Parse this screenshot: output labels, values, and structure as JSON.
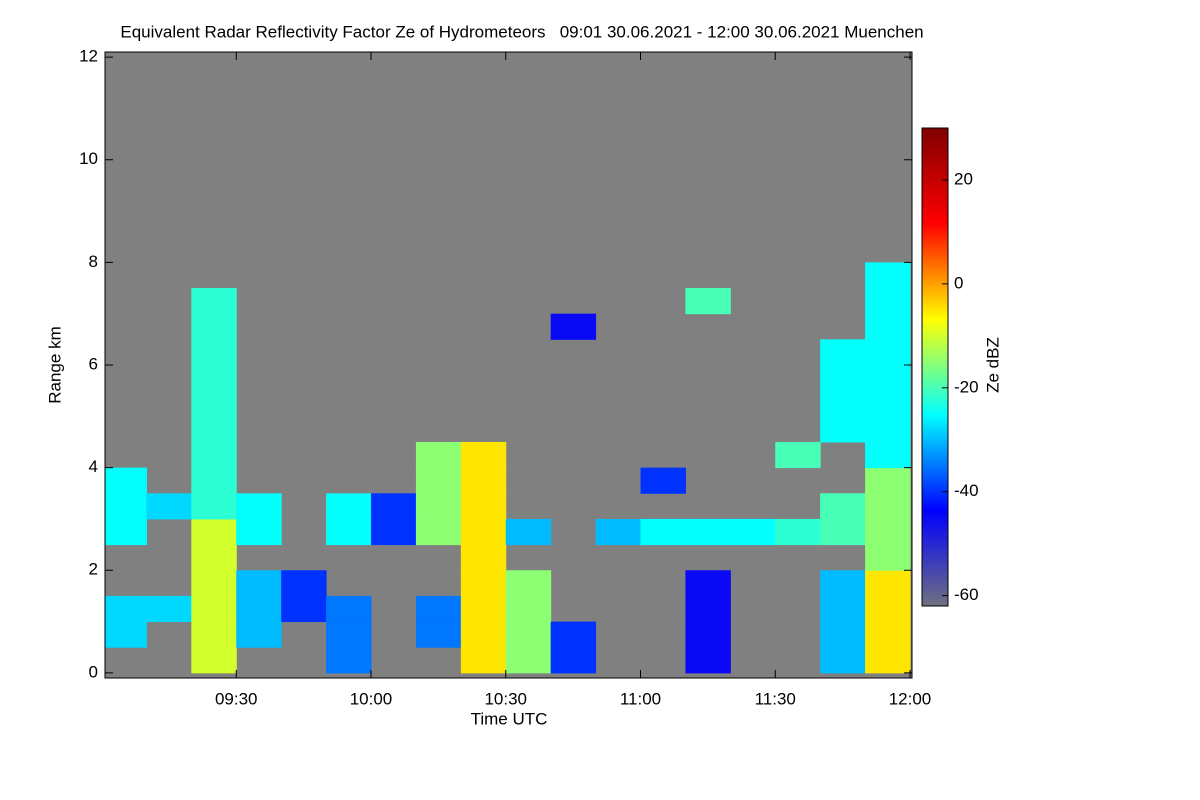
{
  "chart_data": {
    "type": "heatmap",
    "title": "Equivalent Radar Reflectivity Factor Ze of Hydrometeors   09:01 30.06.2021 - 12:00 30.06.2021 Muenchen",
    "x_label": "Time UTC",
    "y_label": "Range km",
    "colorbar_label": "Ze dBZ",
    "background": "#808080",
    "xlim": [
      "09:01",
      "12:00"
    ],
    "xticks": [
      "09:30",
      "10:00",
      "10:30",
      "11:00",
      "11:30",
      "12:00"
    ],
    "ylim": [
      -0.1,
      12.1
    ],
    "yticks": [
      0,
      2,
      4,
      6,
      8,
      10,
      12
    ],
    "zlim": [
      -62,
      30
    ],
    "zticks": [
      -60,
      -40,
      -20,
      0,
      20
    ],
    "colormap": [
      "#707080",
      "#0000ff",
      "#00ffff",
      "#ffff00",
      "#ff0000",
      "#800000"
    ],
    "x": [
      "09:05",
      "09:15",
      "09:25",
      "09:35",
      "09:45",
      "09:55",
      "10:05",
      "10:15",
      "10:25",
      "10:35",
      "10:45",
      "10:55",
      "11:05",
      "11:15",
      "11:25",
      "11:35",
      "11:45",
      "11:55"
    ],
    "y": [
      0.25,
      0.75,
      1.25,
      1.75,
      2.25,
      2.75,
      3.25,
      3.75,
      4.25,
      4.75,
      5.25,
      5.75,
      6.25,
      6.75,
      7.25,
      7.75
    ],
    "z": [
      [
        null,
        null,
        -10,
        null,
        null,
        -35,
        null,
        null,
        -5,
        -15,
        -40,
        null,
        null,
        -45,
        null,
        null,
        -30,
        -5
      ],
      [
        -28,
        null,
        -10,
        -30,
        null,
        -35,
        null,
        -35,
        -5,
        -15,
        -40,
        null,
        null,
        -45,
        null,
        null,
        -30,
        -5
      ],
      [
        -28,
        -28,
        -10,
        -30,
        -40,
        -35,
        null,
        -35,
        -5,
        -15,
        null,
        null,
        null,
        -45,
        null,
        null,
        -30,
        -5
      ],
      [
        null,
        null,
        -10,
        -30,
        -40,
        null,
        null,
        null,
        -5,
        -15,
        null,
        null,
        null,
        -45,
        null,
        null,
        -30,
        -5
      ],
      [
        null,
        null,
        -10,
        null,
        null,
        null,
        null,
        null,
        -5,
        null,
        null,
        null,
        null,
        null,
        null,
        null,
        null,
        -15
      ],
      [
        -25,
        null,
        -10,
        -25,
        null,
        -25,
        -40,
        -15,
        -5,
        -30,
        null,
        -30,
        -25,
        -25,
        -25,
        -22,
        -20,
        -15
      ],
      [
        -25,
        -28,
        -22,
        -25,
        null,
        -25,
        -40,
        -15,
        -5,
        null,
        null,
        null,
        null,
        null,
        null,
        null,
        -20,
        -15
      ],
      [
        -25,
        null,
        -22,
        null,
        null,
        null,
        null,
        -15,
        -5,
        null,
        null,
        null,
        -40,
        null,
        null,
        null,
        null,
        -15
      ],
      [
        null,
        null,
        -22,
        null,
        null,
        null,
        null,
        -15,
        -5,
        null,
        null,
        null,
        null,
        null,
        null,
        -20,
        null,
        -25
      ],
      [
        null,
        null,
        -22,
        null,
        null,
        null,
        null,
        null,
        null,
        null,
        null,
        null,
        null,
        null,
        null,
        null,
        -25,
        -25
      ],
      [
        null,
        null,
        -22,
        null,
        null,
        null,
        null,
        null,
        null,
        null,
        null,
        null,
        null,
        null,
        null,
        null,
        -25,
        -25
      ],
      [
        null,
        null,
        -22,
        null,
        null,
        null,
        null,
        null,
        null,
        null,
        null,
        null,
        null,
        null,
        null,
        null,
        -25,
        -25
      ],
      [
        null,
        null,
        -22,
        null,
        null,
        null,
        null,
        null,
        null,
        null,
        null,
        null,
        null,
        null,
        null,
        null,
        -25,
        -25
      ],
      [
        null,
        null,
        -22,
        null,
        null,
        null,
        null,
        null,
        null,
        null,
        -45,
        null,
        null,
        null,
        null,
        null,
        null,
        -25
      ],
      [
        null,
        null,
        -22,
        null,
        null,
        null,
        null,
        null,
        null,
        null,
        null,
        null,
        null,
        -20,
        null,
        null,
        null,
        -25
      ],
      [
        null,
        null,
        null,
        null,
        null,
        null,
        null,
        null,
        null,
        null,
        null,
        null,
        null,
        null,
        null,
        null,
        null,
        -25
      ]
    ]
  }
}
